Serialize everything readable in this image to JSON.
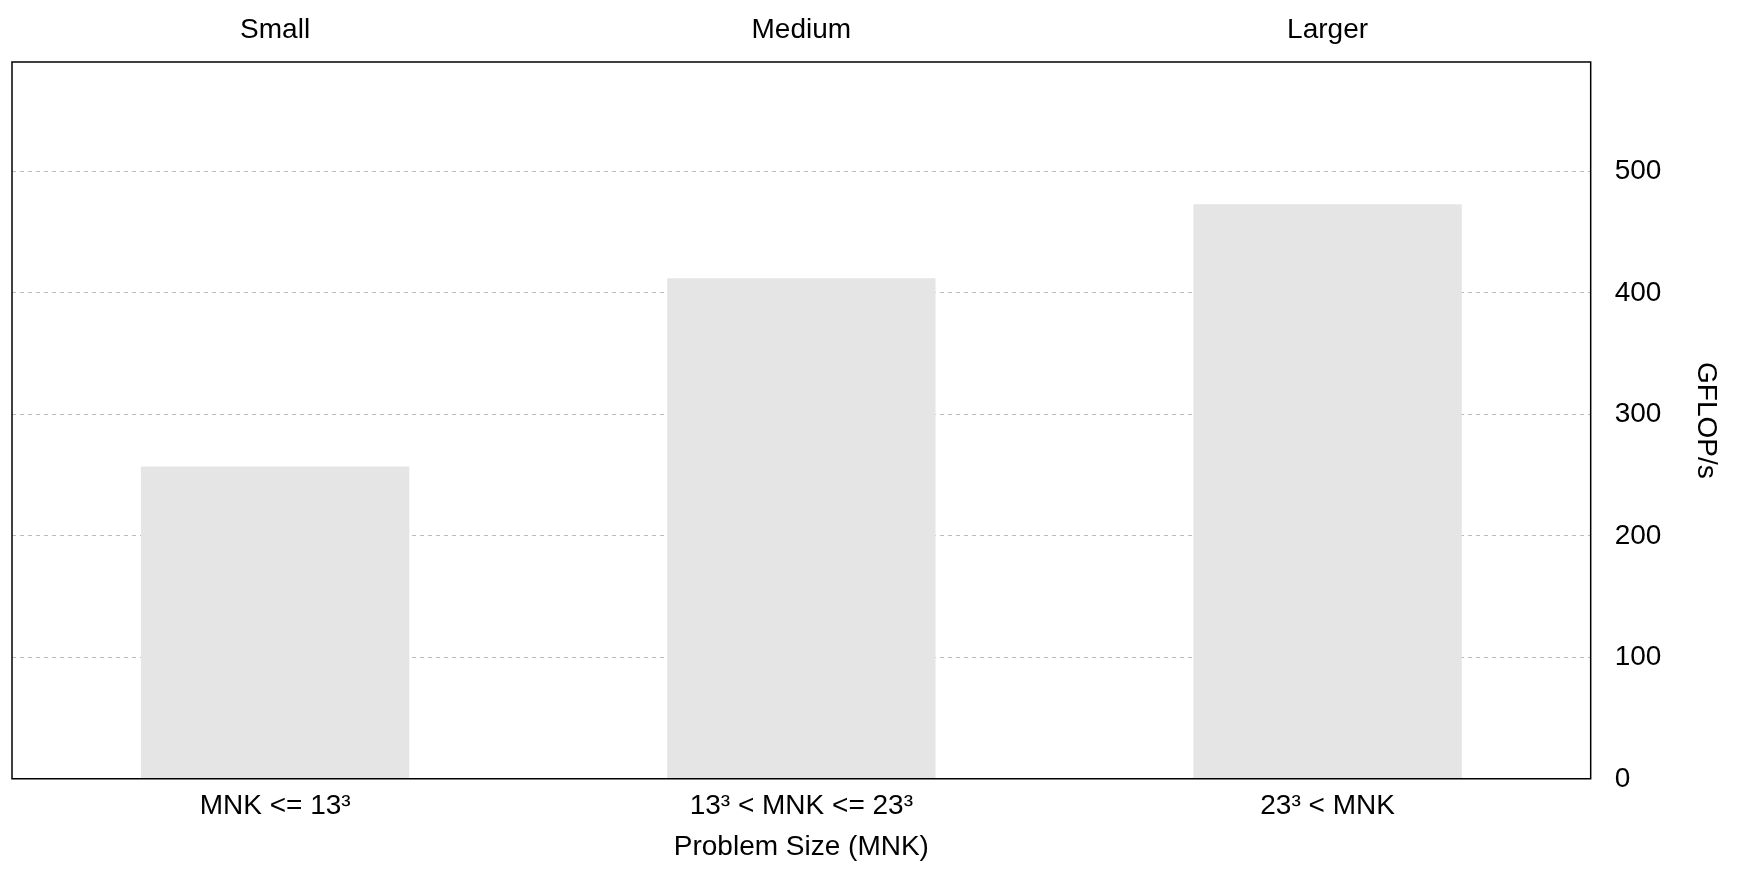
{
  "chart_data": {
    "type": "bar",
    "xlabel": "Problem Size (MNK)",
    "ylabel": "GFLOP/s",
    "categories": [
      "MNK <= 13³",
      "13³ < MNK <= 23³",
      "23³ < MNK"
    ],
    "values": [
      257,
      412,
      473
    ],
    "color": "#e5e5e5",
    "ylim": [
      0,
      590
    ],
    "yticks": [
      0,
      100,
      200,
      300,
      400,
      500
    ],
    "grid": "y",
    "legend": false,
    "annotations": [
      "Small",
      "Medium",
      "Larger"
    ]
  }
}
